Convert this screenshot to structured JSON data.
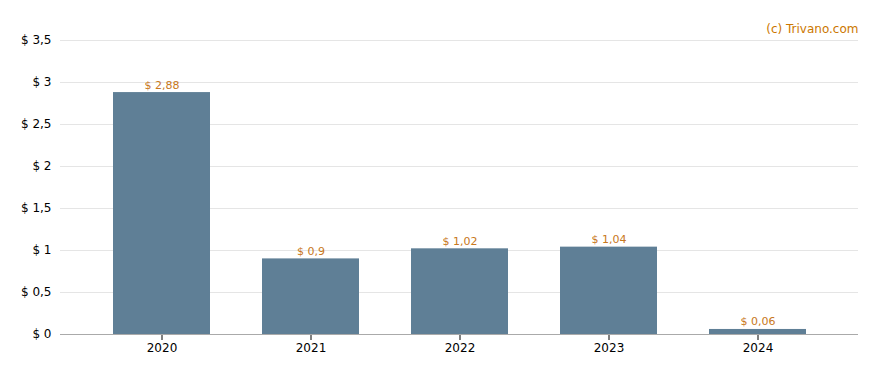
{
  "chart_data": {
    "type": "bar",
    "categories": [
      "2020",
      "2021",
      "2022",
      "2023",
      "2024"
    ],
    "values": [
      2.88,
      0.9,
      1.02,
      1.04,
      0.06
    ],
    "value_labels": [
      "$ 2,88",
      "$ 0,9",
      "$ 1,02",
      "$ 1,04",
      "$ 0,06"
    ],
    "data_labels": true,
    "color": "#5f7f96",
    "ylim": [
      0,
      3.5
    ],
    "yticks": [
      {
        "value": 0.0,
        "label": "$ 0"
      },
      {
        "value": 0.5,
        "label": "$ 0,5"
      },
      {
        "value": 1.0,
        "label": "$ 1"
      },
      {
        "value": 1.5,
        "label": "$ 1,5"
      },
      {
        "value": 2.0,
        "label": "$ 2"
      },
      {
        "value": 2.5,
        "label": "$ 2,5"
      },
      {
        "value": 3.0,
        "label": "$ 3"
      },
      {
        "value": 3.5,
        "label": "$ 3,5"
      }
    ],
    "grid": true,
    "annotations": [
      "(c) Trivano.com"
    ]
  }
}
